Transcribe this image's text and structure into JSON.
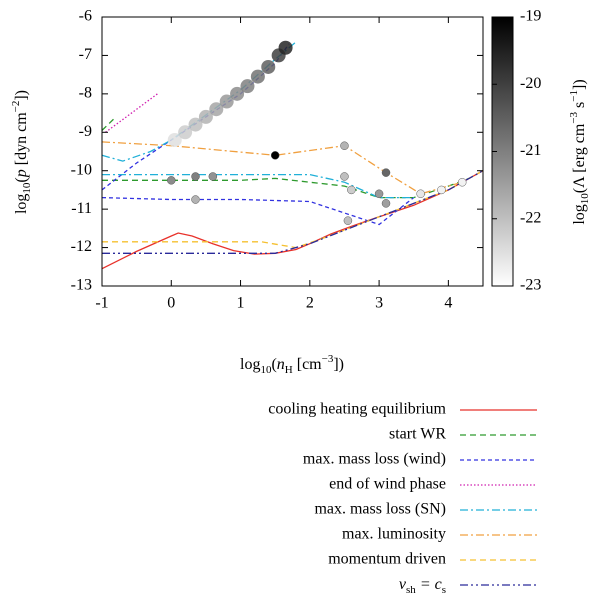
{
  "chart_data": {
    "type": "line",
    "xlabel": [
      "log",
      "10",
      "(",
      "n",
      "H",
      " [cm",
      "−3",
      "])"
    ],
    "ylabel": [
      "log",
      "10",
      "(",
      "p",
      " [dyn cm",
      "−2",
      "])"
    ],
    "xlim": [
      -1,
      4.5
    ],
    "xticks": [
      -1,
      0,
      1,
      2,
      3,
      4
    ],
    "ylim": [
      -13,
      -6
    ],
    "yticks": [
      -13,
      -12,
      -11,
      -10,
      -9,
      -8,
      -7,
      -6
    ],
    "series": [
      {
        "name": "cooling heating equilibrium",
        "color": "#e8312a",
        "dash": "none",
        "x": [
          -1,
          -0.5,
          0,
          0.1,
          0.3,
          0.6,
          0.9,
          1.2,
          1.5,
          1.8,
          2.0,
          2.3,
          2.6,
          3.0,
          3.5,
          4.0,
          4.5
        ],
        "values": [
          -12.55,
          -12.1,
          -11.7,
          -11.62,
          -11.7,
          -11.9,
          -12.08,
          -12.17,
          -12.15,
          -12.05,
          -11.9,
          -11.65,
          -11.45,
          -11.2,
          -10.9,
          -10.5,
          -10.0
        ]
      },
      {
        "name": "start WR",
        "color": "#2e9a2e",
        "dash": "6,4",
        "x": [
          -1,
          -0.8,
          null,
          -1,
          0,
          1,
          1.5,
          2,
          2.5,
          3,
          3.5,
          4,
          4.3
        ],
        "values": [
          -8.95,
          -8.6,
          null,
          -10.25,
          -10.25,
          -10.25,
          -10.2,
          -10.3,
          -10.4,
          -10.7,
          -10.7,
          -10.4,
          -10.2
        ]
      },
      {
        "name": "max. mass loss (wind)",
        "color": "#3232e0",
        "dash": "4,3",
        "x": [
          -1,
          -0.5,
          0,
          0.5,
          1,
          1.5,
          1.7,
          null,
          -1,
          0,
          1,
          2,
          2.5,
          3,
          3.5
        ],
        "values": [
          -10.5,
          -9.8,
          -9.2,
          -8.6,
          -8.0,
          -7.2,
          -6.7,
          null,
          -10.7,
          -10.75,
          -10.75,
          -10.8,
          -11.1,
          -11.4,
          -10.7
        ]
      },
      {
        "name": "end of wind phase",
        "color": "#d020b0",
        "dash": "1.5,2",
        "x": [
          -0.95,
          -0.2
        ],
        "values": [
          -9.0,
          -8.0
        ]
      },
      {
        "name": "max. mass loss (SN)",
        "color": "#20b0d8",
        "dash": "8,3,2,3",
        "x": [
          -1,
          -0.7,
          -0.3,
          0,
          0.5,
          1,
          1.5,
          1.8,
          null,
          -1,
          0,
          1,
          2,
          2.5,
          3,
          3.5
        ],
        "values": [
          -9.6,
          -9.75,
          -9.5,
          -9.2,
          -8.55,
          -7.9,
          -7.1,
          -6.65,
          null,
          -10.1,
          -10.1,
          -10.1,
          -10.1,
          -10.3,
          -10.7,
          -10.7
        ]
      },
      {
        "name": "max. luminosity",
        "color": "#f0a040",
        "dash": "8,3,2,3",
        "x": [
          -1,
          0,
          1.5,
          2.5,
          3.1,
          3.6,
          4.2
        ],
        "values": [
          -9.25,
          -9.35,
          -9.6,
          -9.35,
          -10.05,
          -10.6,
          -10.3
        ]
      },
      {
        "name": "momentum driven",
        "color": "#f5c030",
        "dash": "6,4",
        "x": [
          -1,
          1.3,
          1.8,
          2.2,
          3,
          4,
          4.5
        ],
        "values": [
          -11.85,
          -11.85,
          -12.0,
          -11.75,
          -11.2,
          -10.5,
          -10.0
        ]
      },
      {
        "name": [
          "v",
          "sh",
          " = c",
          "s"
        ],
        "color": "#2a2a9a",
        "dash": "8,3,2,3,2,3",
        "x": [
          -1,
          1.5,
          2,
          3,
          4,
          4.5
        ],
        "values": [
          -12.15,
          -12.15,
          -11.9,
          -11.2,
          -10.5,
          -10.0
        ]
      }
    ],
    "points": {
      "x": [
        0.05,
        0.2,
        0.35,
        0.5,
        0.65,
        0.8,
        0.95,
        1.1,
        1.25,
        1.4,
        1.55,
        1.65,
        0,
        0.35,
        0.35,
        0.6,
        1.5,
        2.5,
        2.5,
        3.1,
        2.6,
        3.0,
        3.1,
        2.55,
        3.6,
        3.9,
        4.2
      ],
      "values": [
        -9.2,
        -9.0,
        -8.8,
        -8.6,
        -8.4,
        -8.2,
        -8.0,
        -7.8,
        -7.55,
        -7.3,
        -7.0,
        -6.8,
        -10.25,
        -10.75,
        -10.15,
        -10.15,
        -9.6,
        -9.35,
        -10.15,
        -10.05,
        -10.5,
        -10.6,
        -10.85,
        -11.3,
        -10.6,
        -10.5,
        -10.3
      ],
      "c": [
        -22.5,
        -22.2,
        -22.0,
        -21.8,
        -21.6,
        -21.4,
        -21.2,
        -21.0,
        -20.8,
        -20.5,
        -20.0,
        -19.6,
        -21.2,
        -21.8,
        -21.0,
        -21.3,
        -19.0,
        -21.8,
        -22.0,
        -20.6,
        -22.2,
        -21.4,
        -21.5,
        -22.0,
        -22.6,
        -22.8,
        -22.8
      ]
    },
    "colorbar": {
      "label": [
        "log",
        "10",
        "(Λ [erg cm",
        "−3",
        " s",
        "−1",
        "])"
      ],
      "lim": [
        -23,
        -19
      ],
      "ticks": [
        -23,
        -22,
        -21,
        -20,
        -19
      ]
    }
  }
}
